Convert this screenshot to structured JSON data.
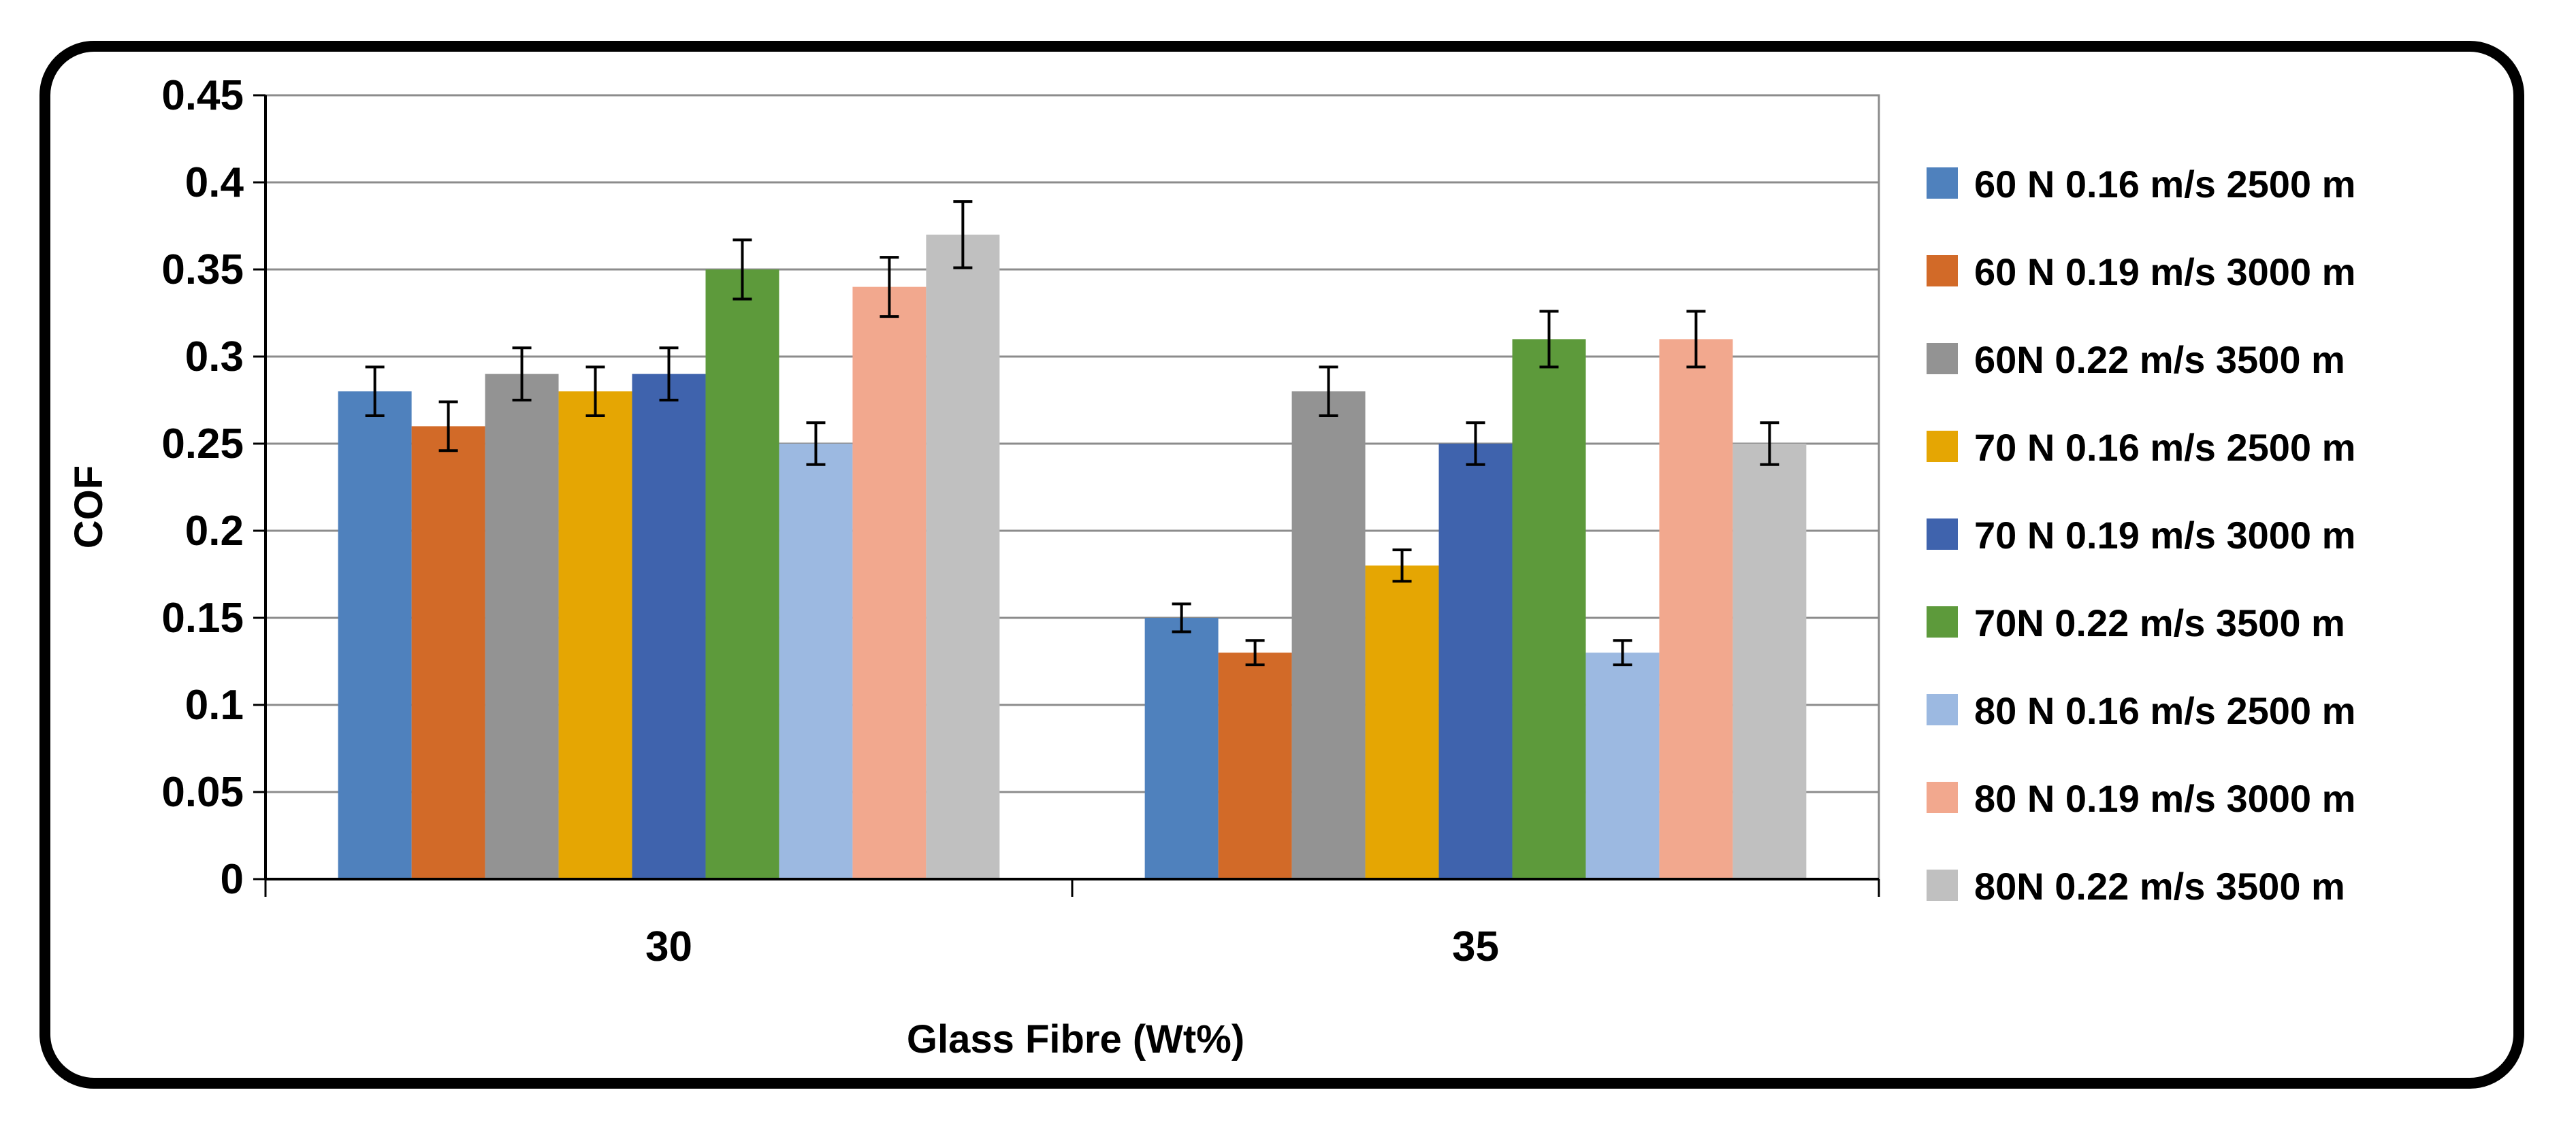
{
  "chart_data": {
    "type": "bar",
    "title": "",
    "xlabel": "Glass Fibre (Wt%)",
    "ylabel": "COF",
    "ylim": [
      0,
      0.45
    ],
    "y_ticks": [
      "0",
      "0.05",
      "0.1",
      "0.15",
      "0.2",
      "0.25",
      "0.3",
      "0.35",
      "0.4",
      "0.45"
    ],
    "grid": true,
    "legend_position": "right",
    "categories": [
      "30",
      "35"
    ],
    "series": [
      {
        "name": "60 N 0.16 m/s 2500 m",
        "color": "#4f81bd",
        "values": [
          0.28,
          0.15
        ],
        "errors": [
          0.014,
          0.008
        ]
      },
      {
        "name": "60 N 0.19 m/s 3000 m",
        "color": "#d26a28",
        "values": [
          0.26,
          0.13
        ],
        "errors": [
          0.014,
          0.007
        ]
      },
      {
        "name": "60N 0.22 m/s 3500 m",
        "color": "#939393",
        "values": [
          0.29,
          0.28
        ],
        "errors": [
          0.015,
          0.014
        ]
      },
      {
        "name": "70 N 0.16 m/s 2500 m",
        "color": "#e5a603",
        "values": [
          0.28,
          0.18
        ],
        "errors": [
          0.014,
          0.009
        ]
      },
      {
        "name": "70 N 0.19 m/s 3000 m",
        "color": "#3f63ad",
        "values": [
          0.29,
          0.25
        ],
        "errors": [
          0.015,
          0.012
        ]
      },
      {
        "name": "70N 0.22 m/s 3500 m",
        "color": "#5d9a3b",
        "values": [
          0.35,
          0.31
        ],
        "errors": [
          0.017,
          0.016
        ]
      },
      {
        "name": "80 N 0.16 m/s 2500 m",
        "color": "#9cb9e1",
        "values": [
          0.25,
          0.13
        ],
        "errors": [
          0.012,
          0.007
        ]
      },
      {
        "name": "80 N 0.19 m/s 3000 m",
        "color": "#f2a88e",
        "values": [
          0.34,
          0.31
        ],
        "errors": [
          0.017,
          0.016
        ]
      },
      {
        "name": "80N 0.22 m/s 3500 m",
        "color": "#c0c0c0",
        "values": [
          0.37,
          0.25
        ],
        "errors": [
          0.019,
          0.012
        ]
      }
    ]
  }
}
